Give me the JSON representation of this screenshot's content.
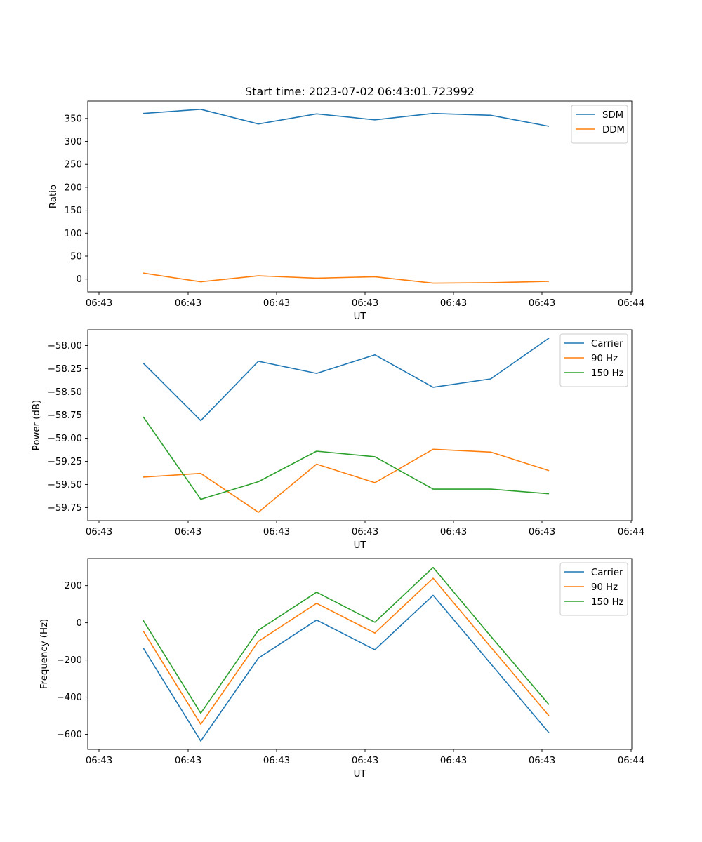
{
  "chart_data": [
    {
      "type": "line",
      "title": "Start time: 2023-07-02 06:43:01.723992",
      "xlabel": "UT",
      "ylabel": "Ratio",
      "x_ticks": [
        "06:43",
        "06:43",
        "06:43",
        "06:43",
        "06:43",
        "06:43",
        "06:44"
      ],
      "y_ticks": [
        0,
        50,
        100,
        150,
        200,
        250,
        300,
        350
      ],
      "ylim": [
        -28,
        388
      ],
      "legend_position": "top-right",
      "series": [
        {
          "name": "SDM",
          "color": "#1f77b4",
          "values": [
            361,
            370,
            338,
            360,
            347,
            361,
            357,
            333
          ]
        },
        {
          "name": "DDM",
          "color": "#ff7f0e",
          "values": [
            13,
            -6,
            7,
            2,
            5,
            -9,
            -8,
            -5
          ]
        }
      ]
    },
    {
      "type": "line",
      "title": "",
      "xlabel": "UT",
      "ylabel": "Power (dB)",
      "x_ticks": [
        "06:43",
        "06:43",
        "06:43",
        "06:43",
        "06:43",
        "06:43",
        "06:44"
      ],
      "y_ticks": [
        -58.0,
        -58.25,
        -58.5,
        -58.75,
        -59.0,
        -59.25,
        -59.5,
        -59.75
      ],
      "y_tick_labels": [
        "−58.00",
        "−58.25",
        "−58.50",
        "−58.75",
        "−59.00",
        "−59.25",
        "−59.50",
        "−59.75"
      ],
      "ylim": [
        -59.89,
        -57.83
      ],
      "legend_position": "top-right",
      "series": [
        {
          "name": "Carrier",
          "color": "#1f77b4",
          "values": [
            -58.19,
            -58.81,
            -58.17,
            -58.3,
            -58.1,
            -58.45,
            -58.36,
            -57.92
          ]
        },
        {
          "name": "90 Hz",
          "color": "#ff7f0e",
          "values": [
            -59.42,
            -59.38,
            -59.8,
            -59.28,
            -59.48,
            -59.12,
            -59.15,
            -59.35
          ]
        },
        {
          "name": "150 Hz",
          "color": "#2ca02c",
          "values": [
            -58.77,
            -59.66,
            -59.47,
            -59.14,
            -59.2,
            -59.55,
            -59.55,
            -59.6
          ]
        }
      ]
    },
    {
      "type": "line",
      "title": "",
      "xlabel": "UT",
      "ylabel": "Frequency (Hz)",
      "x_ticks": [
        "06:43",
        "06:43",
        "06:43",
        "06:43",
        "06:43",
        "06:43",
        "06:44"
      ],
      "y_ticks": [
        200,
        0,
        -200,
        -400,
        -600
      ],
      "y_tick_labels": [
        "200",
        "0",
        "−200",
        "−400",
        "−600"
      ],
      "ylim": [
        -681,
        346
      ],
      "legend_position": "top-right",
      "series": [
        {
          "name": "Carrier",
          "color": "#1f77b4",
          "values": [
            -135,
            -636,
            -190,
            15,
            -145,
            148,
            -220,
            -592
          ]
        },
        {
          "name": "90 Hz",
          "color": "#ff7f0e",
          "values": [
            -44,
            -546,
            -100,
            105,
            -55,
            240,
            -130,
            -500
          ]
        },
        {
          "name": "150 Hz",
          "color": "#2ca02c",
          "values": [
            13,
            -486,
            -40,
            165,
            3,
            298,
            -72,
            -440
          ]
        }
      ]
    }
  ]
}
